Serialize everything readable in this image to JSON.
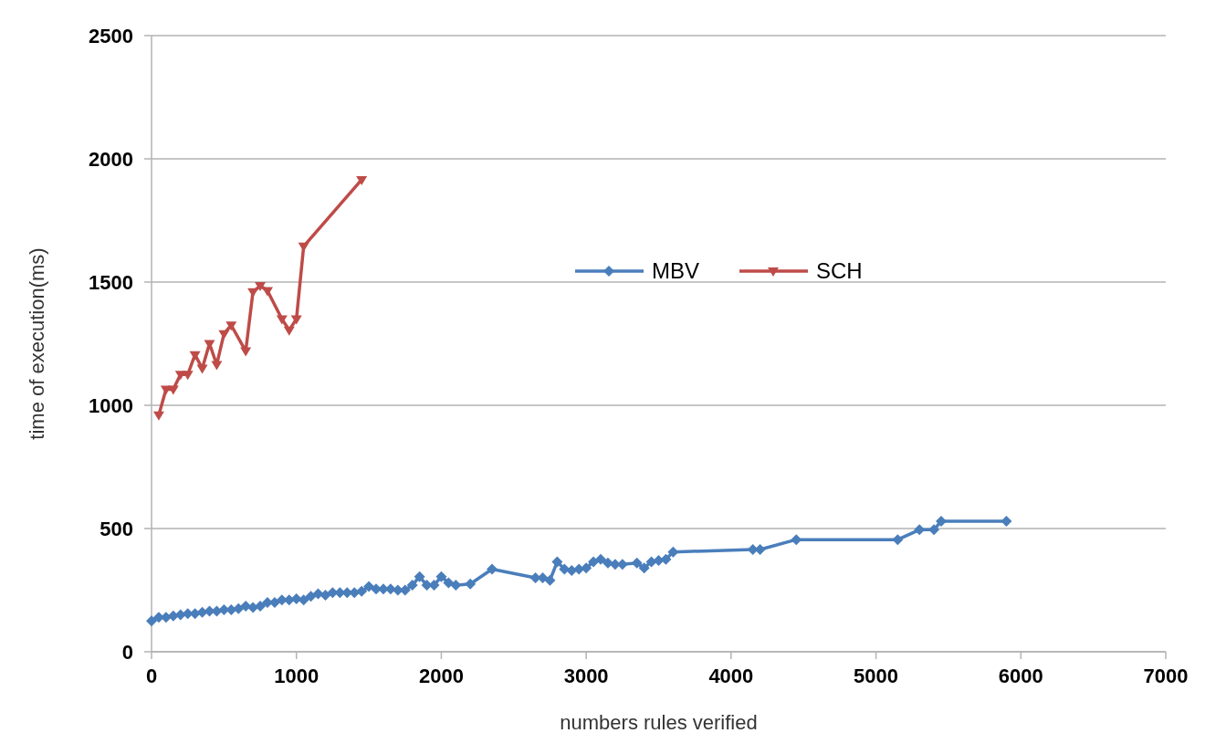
{
  "chart_data": {
    "type": "line",
    "xlabel": "numbers rules verified",
    "ylabel": "time of execution(ms)",
    "xlim": [
      0,
      7000
    ],
    "xticks": [
      0,
      1000,
      2000,
      3000,
      4000,
      5000,
      6000,
      7000
    ],
    "ylim": [
      0,
      2500
    ],
    "yticks": [
      0,
      500,
      1000,
      1500,
      2000,
      2500
    ],
    "grid": "y",
    "legend": "top",
    "series": [
      {
        "name": "MBV",
        "color": "#4a7ebb",
        "marker": "diamond",
        "x": [
          0,
          50,
          100,
          150,
          200,
          250,
          300,
          350,
          400,
          450,
          500,
          550,
          600,
          650,
          700,
          750,
          800,
          850,
          900,
          950,
          1000,
          1050,
          1100,
          1150,
          1200,
          1250,
          1300,
          1350,
          1400,
          1450,
          1500,
          1550,
          1600,
          1650,
          1700,
          1750,
          1800,
          1850,
          1900,
          1950,
          2000,
          2050,
          2100,
          2200,
          2350,
          2650,
          2700,
          2750,
          2800,
          2850,
          2900,
          2950,
          3000,
          3050,
          3100,
          3150,
          3200,
          3250,
          3350,
          3400,
          3450,
          3500,
          3550,
          3600,
          4150,
          4200,
          4450,
          5150,
          5300,
          5400,
          5450,
          5900
        ],
        "values": [
          125,
          140,
          140,
          145,
          150,
          155,
          155,
          160,
          165,
          165,
          170,
          170,
          175,
          185,
          180,
          185,
          200,
          200,
          210,
          210,
          215,
          210,
          225,
          235,
          230,
          240,
          240,
          240,
          240,
          245,
          265,
          255,
          255,
          255,
          250,
          250,
          270,
          305,
          270,
          270,
          305,
          280,
          270,
          275,
          335,
          300,
          300,
          290,
          365,
          335,
          330,
          335,
          340,
          365,
          375,
          360,
          355,
          355,
          360,
          340,
          365,
          370,
          375,
          405,
          415,
          415,
          455,
          455,
          495,
          495,
          530,
          530
        ]
      },
      {
        "name": "SCH",
        "color": "#be4b48",
        "marker": "triangle",
        "x": [
          50,
          100,
          150,
          200,
          250,
          300,
          350,
          400,
          450,
          500,
          550,
          650,
          700,
          750,
          800,
          900,
          950,
          1000,
          1050,
          1450
        ],
        "values": [
          960,
          1065,
          1065,
          1125,
          1125,
          1205,
          1150,
          1250,
          1165,
          1290,
          1325,
          1220,
          1460,
          1485,
          1465,
          1350,
          1305,
          1350,
          1645,
          1915
        ]
      }
    ]
  }
}
